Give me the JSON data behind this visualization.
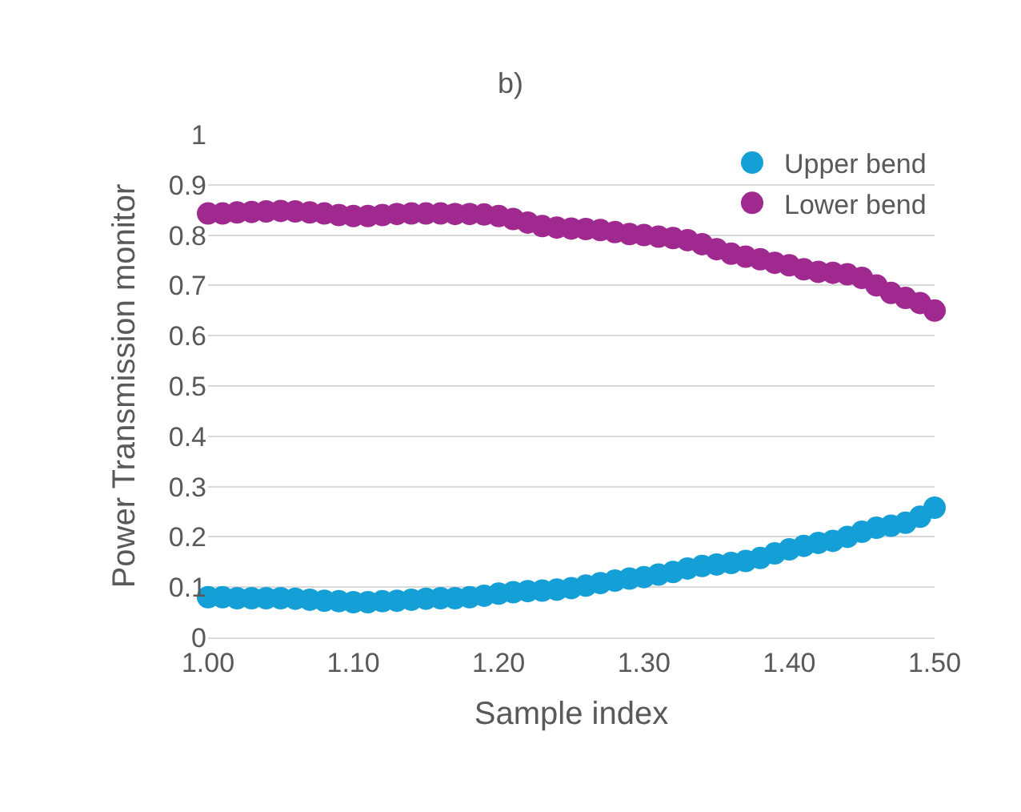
{
  "chart_data": {
    "type": "scatter",
    "title": "b)",
    "xlabel": "Sample index",
    "ylabel": "Power Transmission monitor",
    "x": [
      1.0,
      1.01,
      1.02,
      1.03,
      1.04,
      1.05,
      1.06,
      1.07,
      1.08,
      1.09,
      1.1,
      1.11,
      1.12,
      1.13,
      1.14,
      1.15,
      1.16,
      1.17,
      1.18,
      1.19,
      1.2,
      1.21,
      1.22,
      1.23,
      1.24,
      1.25,
      1.26,
      1.27,
      1.28,
      1.29,
      1.3,
      1.31,
      1.32,
      1.33,
      1.34,
      1.35,
      1.36,
      1.37,
      1.38,
      1.39,
      1.4,
      1.41,
      1.42,
      1.43,
      1.44,
      1.45,
      1.46,
      1.47,
      1.48,
      1.49,
      1.5
    ],
    "series": [
      {
        "name": "Upper bend",
        "color": "#149fd6",
        "values": [
          0.08,
          0.08,
          0.078,
          0.078,
          0.078,
          0.078,
          0.077,
          0.075,
          0.073,
          0.072,
          0.07,
          0.07,
          0.072,
          0.073,
          0.075,
          0.077,
          0.078,
          0.078,
          0.08,
          0.083,
          0.087,
          0.09,
          0.092,
          0.093,
          0.095,
          0.098,
          0.103,
          0.108,
          0.113,
          0.117,
          0.12,
          0.125,
          0.13,
          0.137,
          0.142,
          0.145,
          0.148,
          0.152,
          0.158,
          0.167,
          0.175,
          0.182,
          0.188,
          0.192,
          0.2,
          0.21,
          0.218,
          0.222,
          0.228,
          0.24,
          0.258
        ]
      },
      {
        "name": "Lower bend",
        "color": "#a0298f",
        "values": [
          0.843,
          0.843,
          0.845,
          0.846,
          0.847,
          0.848,
          0.847,
          0.845,
          0.843,
          0.84,
          0.838,
          0.838,
          0.84,
          0.842,
          0.843,
          0.843,
          0.843,
          0.842,
          0.842,
          0.841,
          0.838,
          0.832,
          0.825,
          0.818,
          0.815,
          0.813,
          0.812,
          0.81,
          0.806,
          0.802,
          0.8,
          0.797,
          0.794,
          0.79,
          0.782,
          0.772,
          0.763,
          0.757,
          0.752,
          0.745,
          0.74,
          0.732,
          0.727,
          0.725,
          0.722,
          0.715,
          0.7,
          0.685,
          0.675,
          0.665,
          0.65
        ]
      }
    ],
    "xlim": [
      1.0,
      1.5
    ],
    "xticks": [
      {
        "value": 1.0,
        "label": "1.00"
      },
      {
        "value": 1.1,
        "label": "1.10"
      },
      {
        "value": 1.2,
        "label": "1.20"
      },
      {
        "value": 1.3,
        "label": "1.30"
      },
      {
        "value": 1.4,
        "label": "1.40"
      },
      {
        "value": 1.5,
        "label": "1.50"
      }
    ],
    "ylim": [
      0,
      1
    ],
    "yticks": [
      0,
      0.1,
      0.2,
      0.3,
      0.4,
      0.5,
      0.6,
      0.7,
      0.8,
      0.9,
      1
    ],
    "grid": "y",
    "legend": "top right",
    "marker": "circle"
  }
}
